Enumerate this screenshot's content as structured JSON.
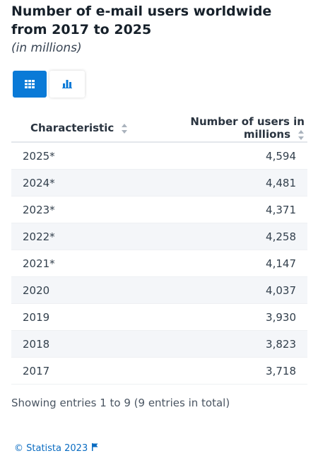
{
  "header": {
    "title": "Number of e-mail users worldwide from 2017 to 2025",
    "subtitle": "(in millions)"
  },
  "view_toggle": {
    "active": "table",
    "options": [
      {
        "name": "table-view",
        "icon": "grid-icon"
      },
      {
        "name": "chart-view",
        "icon": "bar-chart-icon"
      }
    ]
  },
  "table": {
    "columns": [
      "Characteristic",
      "Number of users in millions"
    ],
    "rows": [
      {
        "characteristic": "2025*",
        "value": "4,594"
      },
      {
        "characteristic": "2024*",
        "value": "4,481"
      },
      {
        "characteristic": "2023*",
        "value": "4,371"
      },
      {
        "characteristic": "2022*",
        "value": "4,258"
      },
      {
        "characteristic": "2021*",
        "value": "4,147"
      },
      {
        "characteristic": "2020",
        "value": "4,037"
      },
      {
        "characteristic": "2019",
        "value": "3,930"
      },
      {
        "characteristic": "2018",
        "value": "3,823"
      },
      {
        "characteristic": "2017",
        "value": "3,718"
      }
    ]
  },
  "entries_text": "Showing entries 1 to 9 (9 entries in total)",
  "footer": {
    "copyright": "© Statista 2023",
    "icon": "flag-icon"
  },
  "colors": {
    "accent": "#0a7ad7",
    "stripe": "#f4f6f9",
    "footer_link": "#0a6cc2"
  }
}
